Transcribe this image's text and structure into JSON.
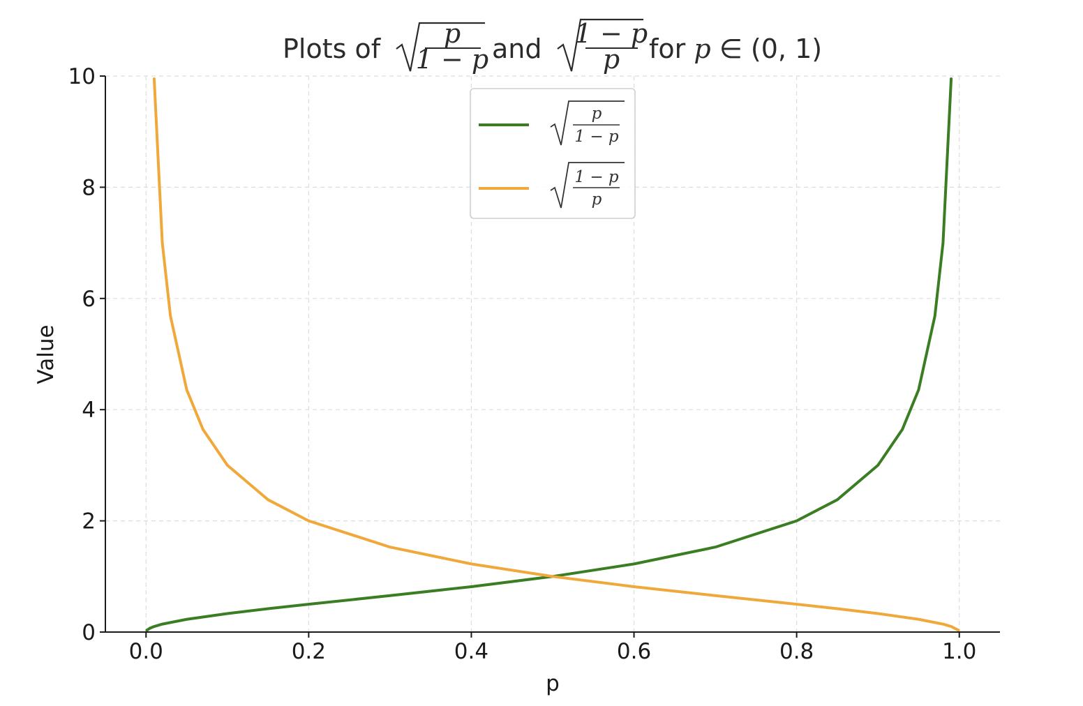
{
  "chart_data": {
    "type": "line",
    "title": {
      "prefix": "Plots of ",
      "expr1": {
        "num": "p",
        "den": "1 − p"
      },
      "middle": " and ",
      "expr2": {
        "num": "1 − p",
        "den": "p"
      },
      "suffix_text": " for ",
      "suffix_var": "p",
      "suffix_math": " ∈ (0, 1)"
    },
    "xlabel": "p",
    "ylabel": "Value",
    "xlim": [
      -0.05,
      1.05
    ],
    "ylim": [
      0,
      10
    ],
    "xticks": [
      0.0,
      0.2,
      0.4,
      0.6,
      0.8,
      1.0
    ],
    "xtick_labels": [
      "0.0",
      "0.2",
      "0.4",
      "0.6",
      "0.8",
      "1.0"
    ],
    "yticks": [
      0,
      2,
      4,
      6,
      8,
      10
    ],
    "ytick_labels": [
      "0",
      "2",
      "4",
      "6",
      "8",
      "10"
    ],
    "grid": true,
    "legend_position": "top-center",
    "series": [
      {
        "name": "√(p/(1−p))",
        "legend": {
          "num": "p",
          "den": "1 − p"
        },
        "color": "#3a7d22",
        "x": [
          0.001,
          0.005,
          0.01,
          0.02,
          0.05,
          0.1,
          0.15,
          0.2,
          0.3,
          0.4,
          0.5,
          0.6,
          0.7,
          0.8,
          0.85,
          0.9,
          0.93,
          0.95,
          0.97,
          0.98,
          0.99
        ],
        "y": [
          0.032,
          0.071,
          0.1,
          0.143,
          0.229,
          0.333,
          0.42,
          0.5,
          0.655,
          0.816,
          1.0,
          1.225,
          1.528,
          2.0,
          2.38,
          3.0,
          3.645,
          4.359,
          5.686,
          7.0,
          9.95
        ]
      },
      {
        "name": "√((1−p)/p)",
        "legend": {
          "num": "1 − p",
          "den": "p"
        },
        "color": "#f0a83a",
        "x": [
          0.01,
          0.02,
          0.03,
          0.05,
          0.07,
          0.1,
          0.15,
          0.2,
          0.3,
          0.4,
          0.5,
          0.6,
          0.7,
          0.8,
          0.85,
          0.9,
          0.95,
          0.98,
          0.99,
          0.999
        ],
        "y": [
          9.95,
          7.0,
          5.686,
          4.359,
          3.645,
          3.0,
          2.38,
          2.0,
          1.528,
          1.225,
          1.0,
          0.816,
          0.655,
          0.5,
          0.42,
          0.333,
          0.229,
          0.143,
          0.1,
          0.032
        ]
      }
    ]
  }
}
